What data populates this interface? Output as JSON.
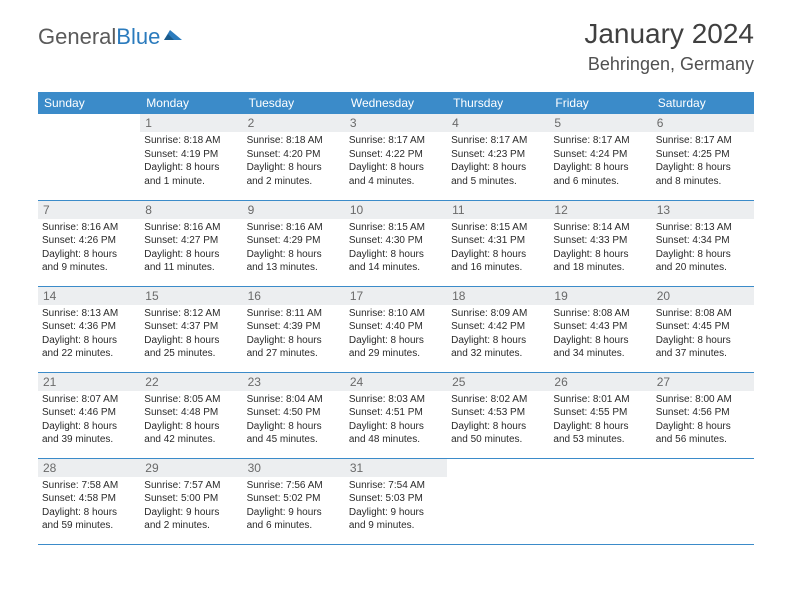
{
  "logo": {
    "part1": "General",
    "part2": "Blue"
  },
  "title": "January 2024",
  "location": "Behringen, Germany",
  "colors": {
    "header_bg": "#3b8bc9",
    "header_text": "#ffffff",
    "daynum_bg": "#eceef0",
    "daynum_text": "#6a6a6a",
    "body_text": "#2a2a2a",
    "row_border": "#3b8bc9",
    "logo_gray": "#5a5a5a",
    "logo_blue": "#2b7bbd"
  },
  "weekdays": [
    "Sunday",
    "Monday",
    "Tuesday",
    "Wednesday",
    "Thursday",
    "Friday",
    "Saturday"
  ],
  "weeks": [
    [
      {
        "n": "",
        "sr": "",
        "ss": "",
        "dl1": "",
        "dl2": "",
        "empty": true
      },
      {
        "n": "1",
        "sr": "Sunrise: 8:18 AM",
        "ss": "Sunset: 4:19 PM",
        "dl1": "Daylight: 8 hours",
        "dl2": "and 1 minute."
      },
      {
        "n": "2",
        "sr": "Sunrise: 8:18 AM",
        "ss": "Sunset: 4:20 PM",
        "dl1": "Daylight: 8 hours",
        "dl2": "and 2 minutes."
      },
      {
        "n": "3",
        "sr": "Sunrise: 8:17 AM",
        "ss": "Sunset: 4:22 PM",
        "dl1": "Daylight: 8 hours",
        "dl2": "and 4 minutes."
      },
      {
        "n": "4",
        "sr": "Sunrise: 8:17 AM",
        "ss": "Sunset: 4:23 PM",
        "dl1": "Daylight: 8 hours",
        "dl2": "and 5 minutes."
      },
      {
        "n": "5",
        "sr": "Sunrise: 8:17 AM",
        "ss": "Sunset: 4:24 PM",
        "dl1": "Daylight: 8 hours",
        "dl2": "and 6 minutes."
      },
      {
        "n": "6",
        "sr": "Sunrise: 8:17 AM",
        "ss": "Sunset: 4:25 PM",
        "dl1": "Daylight: 8 hours",
        "dl2": "and 8 minutes."
      }
    ],
    [
      {
        "n": "7",
        "sr": "Sunrise: 8:16 AM",
        "ss": "Sunset: 4:26 PM",
        "dl1": "Daylight: 8 hours",
        "dl2": "and 9 minutes."
      },
      {
        "n": "8",
        "sr": "Sunrise: 8:16 AM",
        "ss": "Sunset: 4:27 PM",
        "dl1": "Daylight: 8 hours",
        "dl2": "and 11 minutes."
      },
      {
        "n": "9",
        "sr": "Sunrise: 8:16 AM",
        "ss": "Sunset: 4:29 PM",
        "dl1": "Daylight: 8 hours",
        "dl2": "and 13 minutes."
      },
      {
        "n": "10",
        "sr": "Sunrise: 8:15 AM",
        "ss": "Sunset: 4:30 PM",
        "dl1": "Daylight: 8 hours",
        "dl2": "and 14 minutes."
      },
      {
        "n": "11",
        "sr": "Sunrise: 8:15 AM",
        "ss": "Sunset: 4:31 PM",
        "dl1": "Daylight: 8 hours",
        "dl2": "and 16 minutes."
      },
      {
        "n": "12",
        "sr": "Sunrise: 8:14 AM",
        "ss": "Sunset: 4:33 PM",
        "dl1": "Daylight: 8 hours",
        "dl2": "and 18 minutes."
      },
      {
        "n": "13",
        "sr": "Sunrise: 8:13 AM",
        "ss": "Sunset: 4:34 PM",
        "dl1": "Daylight: 8 hours",
        "dl2": "and 20 minutes."
      }
    ],
    [
      {
        "n": "14",
        "sr": "Sunrise: 8:13 AM",
        "ss": "Sunset: 4:36 PM",
        "dl1": "Daylight: 8 hours",
        "dl2": "and 22 minutes."
      },
      {
        "n": "15",
        "sr": "Sunrise: 8:12 AM",
        "ss": "Sunset: 4:37 PM",
        "dl1": "Daylight: 8 hours",
        "dl2": "and 25 minutes."
      },
      {
        "n": "16",
        "sr": "Sunrise: 8:11 AM",
        "ss": "Sunset: 4:39 PM",
        "dl1": "Daylight: 8 hours",
        "dl2": "and 27 minutes."
      },
      {
        "n": "17",
        "sr": "Sunrise: 8:10 AM",
        "ss": "Sunset: 4:40 PM",
        "dl1": "Daylight: 8 hours",
        "dl2": "and 29 minutes."
      },
      {
        "n": "18",
        "sr": "Sunrise: 8:09 AM",
        "ss": "Sunset: 4:42 PM",
        "dl1": "Daylight: 8 hours",
        "dl2": "and 32 minutes."
      },
      {
        "n": "19",
        "sr": "Sunrise: 8:08 AM",
        "ss": "Sunset: 4:43 PM",
        "dl1": "Daylight: 8 hours",
        "dl2": "and 34 minutes."
      },
      {
        "n": "20",
        "sr": "Sunrise: 8:08 AM",
        "ss": "Sunset: 4:45 PM",
        "dl1": "Daylight: 8 hours",
        "dl2": "and 37 minutes."
      }
    ],
    [
      {
        "n": "21",
        "sr": "Sunrise: 8:07 AM",
        "ss": "Sunset: 4:46 PM",
        "dl1": "Daylight: 8 hours",
        "dl2": "and 39 minutes."
      },
      {
        "n": "22",
        "sr": "Sunrise: 8:05 AM",
        "ss": "Sunset: 4:48 PM",
        "dl1": "Daylight: 8 hours",
        "dl2": "and 42 minutes."
      },
      {
        "n": "23",
        "sr": "Sunrise: 8:04 AM",
        "ss": "Sunset: 4:50 PM",
        "dl1": "Daylight: 8 hours",
        "dl2": "and 45 minutes."
      },
      {
        "n": "24",
        "sr": "Sunrise: 8:03 AM",
        "ss": "Sunset: 4:51 PM",
        "dl1": "Daylight: 8 hours",
        "dl2": "and 48 minutes."
      },
      {
        "n": "25",
        "sr": "Sunrise: 8:02 AM",
        "ss": "Sunset: 4:53 PM",
        "dl1": "Daylight: 8 hours",
        "dl2": "and 50 minutes."
      },
      {
        "n": "26",
        "sr": "Sunrise: 8:01 AM",
        "ss": "Sunset: 4:55 PM",
        "dl1": "Daylight: 8 hours",
        "dl2": "and 53 minutes."
      },
      {
        "n": "27",
        "sr": "Sunrise: 8:00 AM",
        "ss": "Sunset: 4:56 PM",
        "dl1": "Daylight: 8 hours",
        "dl2": "and 56 minutes."
      }
    ],
    [
      {
        "n": "28",
        "sr": "Sunrise: 7:58 AM",
        "ss": "Sunset: 4:58 PM",
        "dl1": "Daylight: 8 hours",
        "dl2": "and 59 minutes."
      },
      {
        "n": "29",
        "sr": "Sunrise: 7:57 AM",
        "ss": "Sunset: 5:00 PM",
        "dl1": "Daylight: 9 hours",
        "dl2": "and 2 minutes."
      },
      {
        "n": "30",
        "sr": "Sunrise: 7:56 AM",
        "ss": "Sunset: 5:02 PM",
        "dl1": "Daylight: 9 hours",
        "dl2": "and 6 minutes."
      },
      {
        "n": "31",
        "sr": "Sunrise: 7:54 AM",
        "ss": "Sunset: 5:03 PM",
        "dl1": "Daylight: 9 hours",
        "dl2": "and 9 minutes."
      },
      {
        "n": "",
        "sr": "",
        "ss": "",
        "dl1": "",
        "dl2": "",
        "empty": true
      },
      {
        "n": "",
        "sr": "",
        "ss": "",
        "dl1": "",
        "dl2": "",
        "empty": true
      },
      {
        "n": "",
        "sr": "",
        "ss": "",
        "dl1": "",
        "dl2": "",
        "empty": true
      }
    ]
  ]
}
